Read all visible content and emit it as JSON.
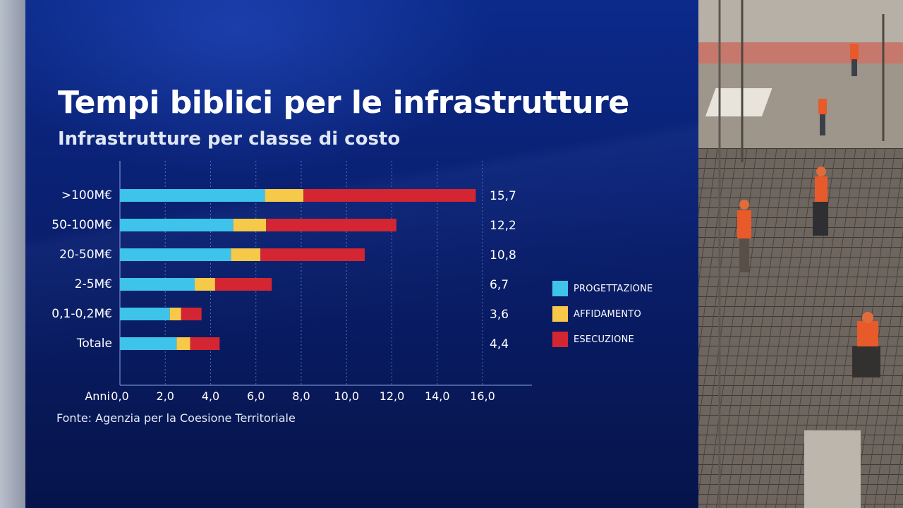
{
  "header": {
    "title": "Tempi biblici per le infrastrutture",
    "subtitle": "Infrastrutture per classe di costo"
  },
  "source": "Fonte: Agenzia per la Coesione Territoriale",
  "colors": {
    "progettazione": "#3ec3ea",
    "affidamento": "#f7c948",
    "esecuzione": "#d32632"
  },
  "chart_data": {
    "type": "bar",
    "orientation": "horizontal",
    "stacked": true,
    "title": "Tempi biblici per le infrastrutture",
    "subtitle": "Infrastrutture per classe di costo",
    "xlabel": "Anni",
    "xlim": [
      0,
      16
    ],
    "xticks": [
      "0,0",
      "2,0",
      "4,0",
      "6,0",
      "8,0",
      "10,0",
      "12,0",
      "14,0",
      "16,0"
    ],
    "grid": "vertical dashed",
    "legend_position": "right",
    "categories": [
      ">100M€",
      "50-100M€",
      "20-50M€",
      "2-5M€",
      "0,1-0,2M€",
      "Totale"
    ],
    "totals_labels": [
      "15,7",
      "12,2",
      "10,8",
      "6,7",
      "3,6",
      "4,4"
    ],
    "series": [
      {
        "name": "PROGETTAZIONE",
        "values": [
          6.4,
          5.0,
          4.9,
          3.3,
          2.2,
          2.5
        ]
      },
      {
        "name": "AFFIDAMENTO",
        "values": [
          1.7,
          1.45,
          1.3,
          0.9,
          0.5,
          0.6
        ]
      },
      {
        "name": "ESECUZIONE",
        "values": [
          7.6,
          5.75,
          4.6,
          2.5,
          0.9,
          1.3
        ]
      }
    ]
  }
}
